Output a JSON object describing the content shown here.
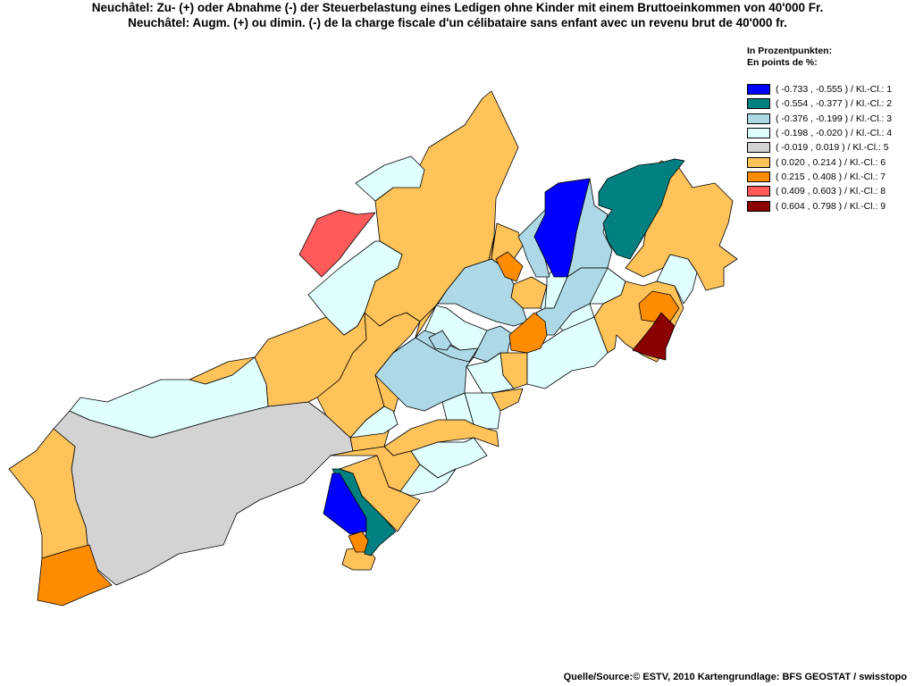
{
  "title": {
    "line1": "Neuchâtel: Zu- (+) oder Abnahme (-) der Steuerbelastung eines Ledigen ohne Kinder mit einem Bruttoeinkommen von 40'000 Fr.",
    "line2": "Neuchâtel: Augm. (+) ou dimin. (-) de la charge fiscale d'un célibataire sans enfant avec un revenu brut de 40'000 fr."
  },
  "legend": {
    "heading_de": "In Prozentpunkten:",
    "heading_fr": "En points de %:",
    "classes": [
      {
        "label": "( -0.733 , -0.555 ) / Kl.-Cl.: 1",
        "color": "#0000ff"
      },
      {
        "label": "( -0.554 , -0.377 ) / Kl.-Cl.: 2",
        "color": "#008080"
      },
      {
        "label": "( -0.376 , -0.199 ) / Kl.-Cl.: 3",
        "color": "#add8e6"
      },
      {
        "label": "( -0.198 , -0.020 ) / Kl.-Cl.: 4",
        "color": "#e0ffff"
      },
      {
        "label": "( -0.019 , 0.019 ) / Kl.-Cl.: 5",
        "color": "#d3d3d3"
      },
      {
        "label": "( 0.020 , 0.214 ) / Kl.-Cl.: 6",
        "color": "#ffc35a"
      },
      {
        "label": "( 0.215 , 0.408 ) / Kl.-Cl.: 7",
        "color": "#ff8c00"
      },
      {
        "label": "( 0.409 , 0.603 ) / Kl.-Cl.: 8",
        "color": "#ff5a5a"
      },
      {
        "label": "( 0.604 , 0.798 ) / Kl.-Cl.: 9",
        "color": "#8b0000"
      }
    ]
  },
  "source": "Quelle/Source:© ESTV, 2010 Kartengrundlage: BFS GEOSTAT / swisstopo"
}
